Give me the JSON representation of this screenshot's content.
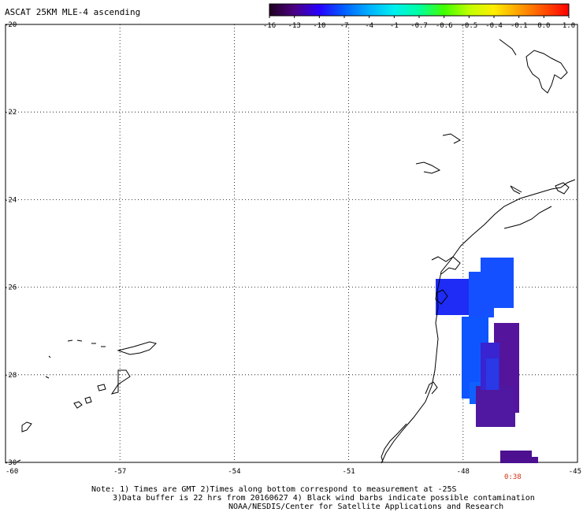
{
  "title": "ASCAT 25KM MLE-4 ascending",
  "colorbar": {
    "labels": [
      "-16",
      "-13",
      "-10",
      "-7",
      "-4",
      "-1",
      "-0.7",
      "-0.6",
      "-0.5",
      "-0.4",
      "-0.1",
      "0.0",
      "1.0"
    ],
    "colors": [
      "#200020",
      "#4b0082",
      "#2800ff",
      "#0060ff",
      "#00b0ff",
      "#00f0f0",
      "#00ffa0",
      "#40ff00",
      "#c0ff00",
      "#ffee00",
      "#ffa000",
      "#ff5000",
      "#ff0000"
    ]
  },
  "axes": {
    "lat_labels": [
      "-20",
      "-22",
      "-24",
      "-26",
      "-28",
      "-30"
    ],
    "lon_labels": [
      "-60",
      "-57",
      "-54",
      "-51",
      "-48",
      "-45"
    ]
  },
  "swath_time": "0:38",
  "notes": {
    "line1": "Note: 1) Times are GMT 2)Times along bottom correspond to measurement at -25S",
    "line2": "3)Data buffer is 22 hrs from 20160627 4) Black wind barbs indicate possible contamination",
    "line3": "NOAA/NESDIS/Center for Satellite Applications and Research"
  }
}
